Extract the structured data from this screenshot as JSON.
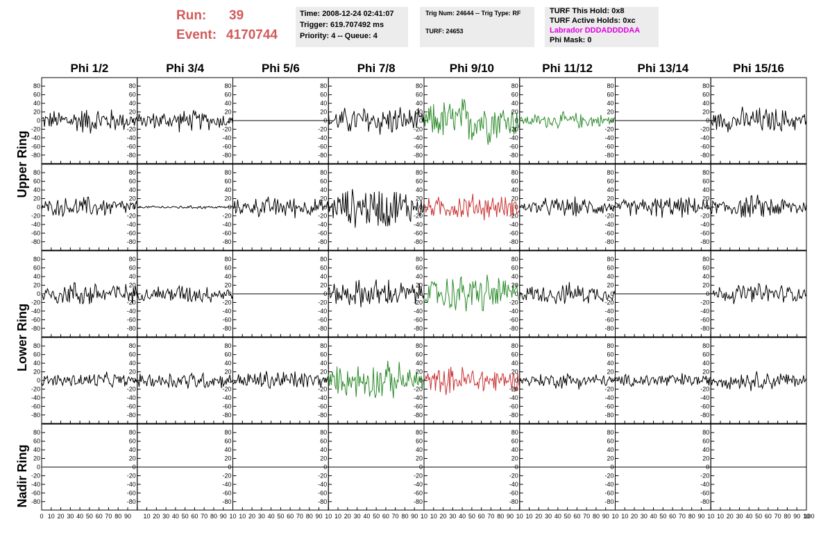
{
  "header": {
    "run_label": "Run:",
    "run_value": "39",
    "event_label": "Event:",
    "event_value": "4170744"
  },
  "info_box_1": {
    "time": "Time: 2008-12-24 02:41:07",
    "trigger": "Trigger: 619.707492 ms",
    "priority": "Priority: 4 -- Queue: 4"
  },
  "info_box_2": {
    "trig": "Trig Num: 24644 -- Trig Type: RF",
    "turf": "TURF: 24653"
  },
  "info_box_3": {
    "hold": "TURF This Hold: 0x8",
    "active": "TURF Active Holds: 0xc",
    "labrador": "Labrador DDDADDDDAA",
    "phimask": "Phi Mask: 0"
  },
  "colors": {
    "green": "#2a8a2a",
    "red": "#c83030",
    "black": "#000000",
    "run_text": "#d25a5a",
    "labrador_text": "#e000e0"
  },
  "chart_data": {
    "type": "line",
    "columns": [
      "Phi 1/2",
      "Phi 3/4",
      "Phi 5/6",
      "Phi 7/8",
      "Phi 9/10",
      "Phi 11/12",
      "Phi 13/14",
      "Phi 15/16"
    ],
    "rows": [
      "Upper Ring",
      "Upper Ring",
      "Lower Ring",
      "Lower Ring",
      "Nadir Ring"
    ],
    "row_titles": [
      "Upper Ring",
      "Lower Ring",
      "Nadir Ring"
    ],
    "ylim": [
      -90,
      90
    ],
    "y_ticks": [
      "80",
      "60",
      "40",
      "20",
      "0",
      "-20",
      "-40",
      "-60",
      "-80"
    ],
    "xlim": [
      0,
      100
    ],
    "x_ticks": [
      "0",
      "10",
      "20",
      "30",
      "40",
      "50",
      "60",
      "70",
      "80",
      "90",
      "100"
    ],
    "x_ticks_inner": [
      "10",
      "20",
      "30",
      "40",
      "50",
      "60",
      "70",
      "80",
      "90",
      "10"
    ],
    "trace_color": [
      [
        "black",
        "black",
        "black",
        "black",
        "green",
        "green",
        "black",
        "black"
      ],
      [
        "black",
        "black",
        "black",
        "black",
        "red",
        "black",
        "black",
        "black"
      ],
      [
        "black",
        "black",
        "black",
        "black",
        "green",
        "black",
        "black",
        "black"
      ],
      [
        "black",
        "black",
        "black",
        "green",
        "red",
        "black",
        "black",
        "black"
      ],
      [
        "black",
        "black",
        "black",
        "black",
        "black",
        "black",
        "black",
        "black"
      ]
    ],
    "amplitude": [
      [
        25,
        20,
        0,
        30,
        45,
        15,
        0,
        25
      ],
      [
        20,
        3,
        20,
        40,
        25,
        18,
        20,
        22
      ],
      [
        25,
        18,
        0,
        28,
        38,
        20,
        0,
        20
      ],
      [
        15,
        18,
        20,
        35,
        28,
        15,
        15,
        18
      ],
      [
        0,
        0,
        0,
        0,
        0,
        0,
        0,
        0
      ]
    ],
    "samples_per_trace": 100
  }
}
